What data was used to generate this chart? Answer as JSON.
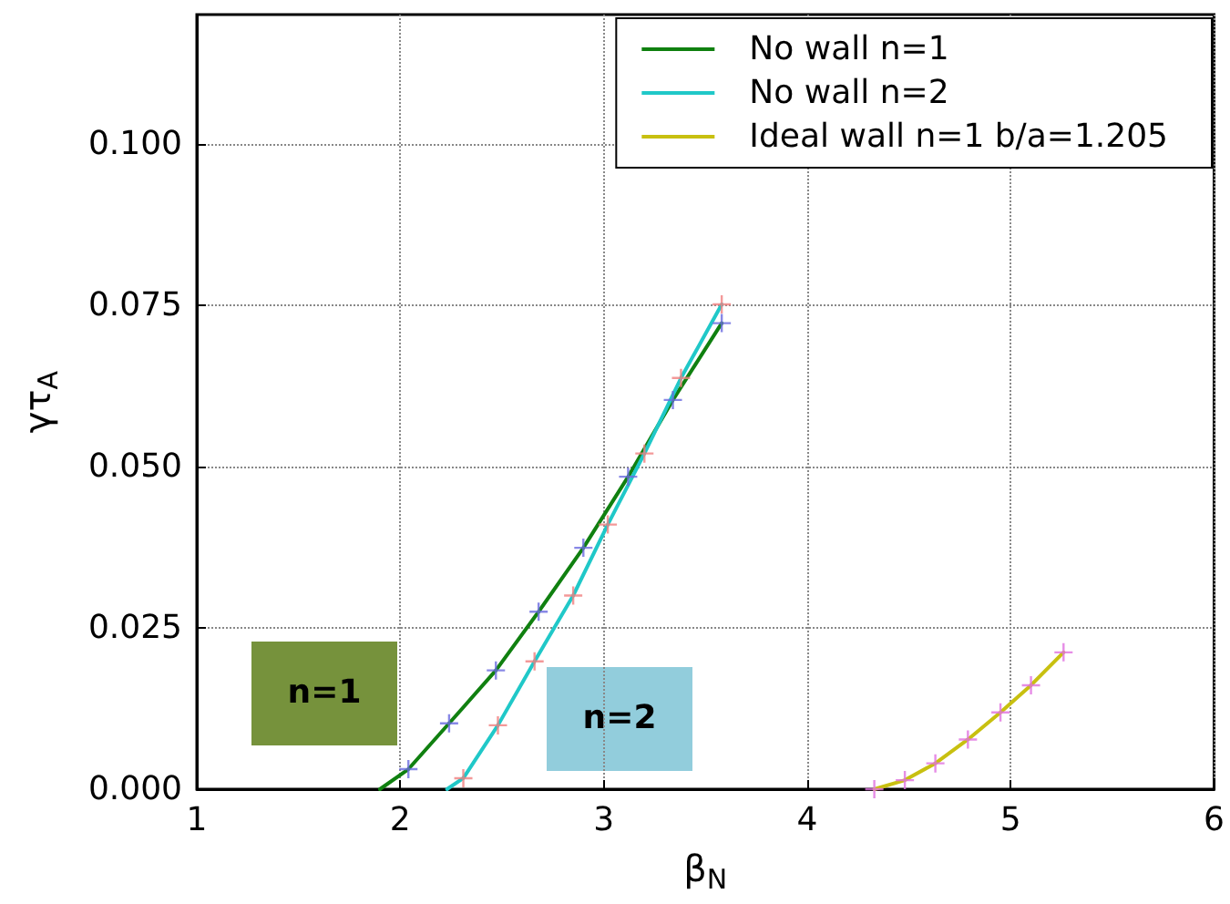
{
  "chart_data": {
    "type": "line",
    "xlabel": "β$_{N}$",
    "ylabel": "γτ$_{A}$",
    "xlim": [
      1,
      6
    ],
    "xticks": [
      1,
      2,
      3,
      4,
      5,
      6
    ],
    "ylim": [
      0,
      0.12
    ],
    "yticks": [
      {
        "value": 0,
        "label": "0.000"
      },
      {
        "value": 0.025,
        "label": "0.025"
      },
      {
        "value": 0.05,
        "label": "0.050"
      },
      {
        "value": 0.075,
        "label": "0.075"
      },
      {
        "value": 0.1,
        "label": "0.100"
      }
    ],
    "grid": true,
    "legend": "top right",
    "line_style": "solid",
    "annotations": [
      "n=1",
      "n=2"
    ],
    "series": [
      {
        "name": "No wall n=1",
        "color": "#108010",
        "x": [
          1.9,
          2.04,
          2.24,
          2.47,
          2.68,
          2.9,
          3.12,
          3.34,
          3.58
        ],
        "values": [
          0,
          0.0031,
          0.0102,
          0.0184,
          0.0275,
          0.0374,
          0.0484,
          0.0603,
          0.0722
        ]
      },
      {
        "name": "No wall n=2",
        "color": "#20c8c8",
        "x": [
          2.23,
          2.31,
          2.48,
          2.66,
          2.85,
          3.02,
          3.2,
          3.38,
          3.58
        ],
        "values": [
          0,
          0.0017,
          0.0099,
          0.0198,
          0.03,
          0.041,
          0.052,
          0.0637,
          0.0751
        ]
      },
      {
        "name": "Ideal wall n=1 b/a=1.205",
        "color": "#c8c010",
        "x": [
          4.33,
          4.48,
          4.63,
          4.79,
          4.95,
          5.1,
          5.26
        ],
        "values": [
          0,
          0.0014,
          0.004,
          0.0077,
          0.0119,
          0.0161,
          0.0212
        ]
      },
      {
        "type": "scatter",
        "marker": "cross",
        "color": "#6a6ae0",
        "x": [
          2.04,
          2.24,
          2.47,
          2.68,
          2.9,
          3.12,
          3.34,
          3.58
        ],
        "values": [
          0.0031,
          0.0102,
          0.0184,
          0.0275,
          0.0374,
          0.0484,
          0.0603,
          0.0722
        ]
      },
      {
        "type": "scatter",
        "marker": "cross",
        "color": "#f08080",
        "x": [
          2.31,
          2.48,
          2.66,
          2.85,
          3.02,
          3.2,
          3.38,
          3.58
        ],
        "values": [
          0.0017,
          0.0099,
          0.0198,
          0.03,
          0.041,
          0.052,
          0.0637,
          0.0751
        ]
      },
      {
        "type": "scatter",
        "marker": "cross",
        "color": "#e070e0",
        "x": [
          4.33,
          4.48,
          4.63,
          4.79,
          4.95,
          5.1,
          5.26
        ],
        "values": [
          0,
          0.0014,
          0.004,
          0.0077,
          0.0119,
          0.0161,
          0.0212
        ]
      }
    ]
  }
}
